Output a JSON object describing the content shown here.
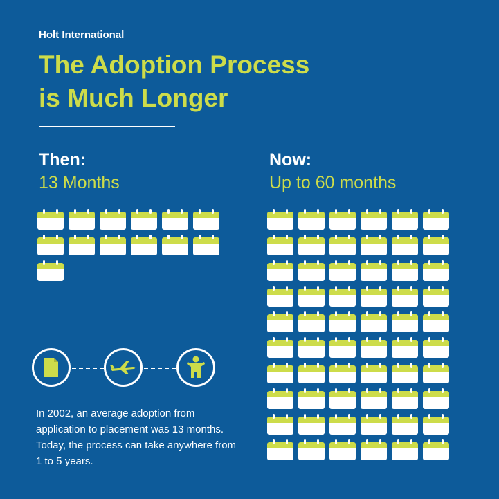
{
  "brand": "Holt International",
  "title": {
    "line1": "The Adoption Process",
    "line2": "is Much Longer"
  },
  "then": {
    "heading": "Then:",
    "subheading": "13 Months",
    "months": 13
  },
  "now": {
    "heading": "Now:",
    "subheading": "Up to 60 months",
    "months": 60
  },
  "steps": {
    "icons": [
      "document-icon",
      "airplane-icon",
      "child-icon"
    ]
  },
  "description": "In 2002, an average adoption from application to placement was 13 months. Today, the process can take anywhere from 1 to 5 years.",
  "colors": {
    "background": "#0d5b9a",
    "accent": "#cddc4a",
    "text": "#ffffff"
  }
}
